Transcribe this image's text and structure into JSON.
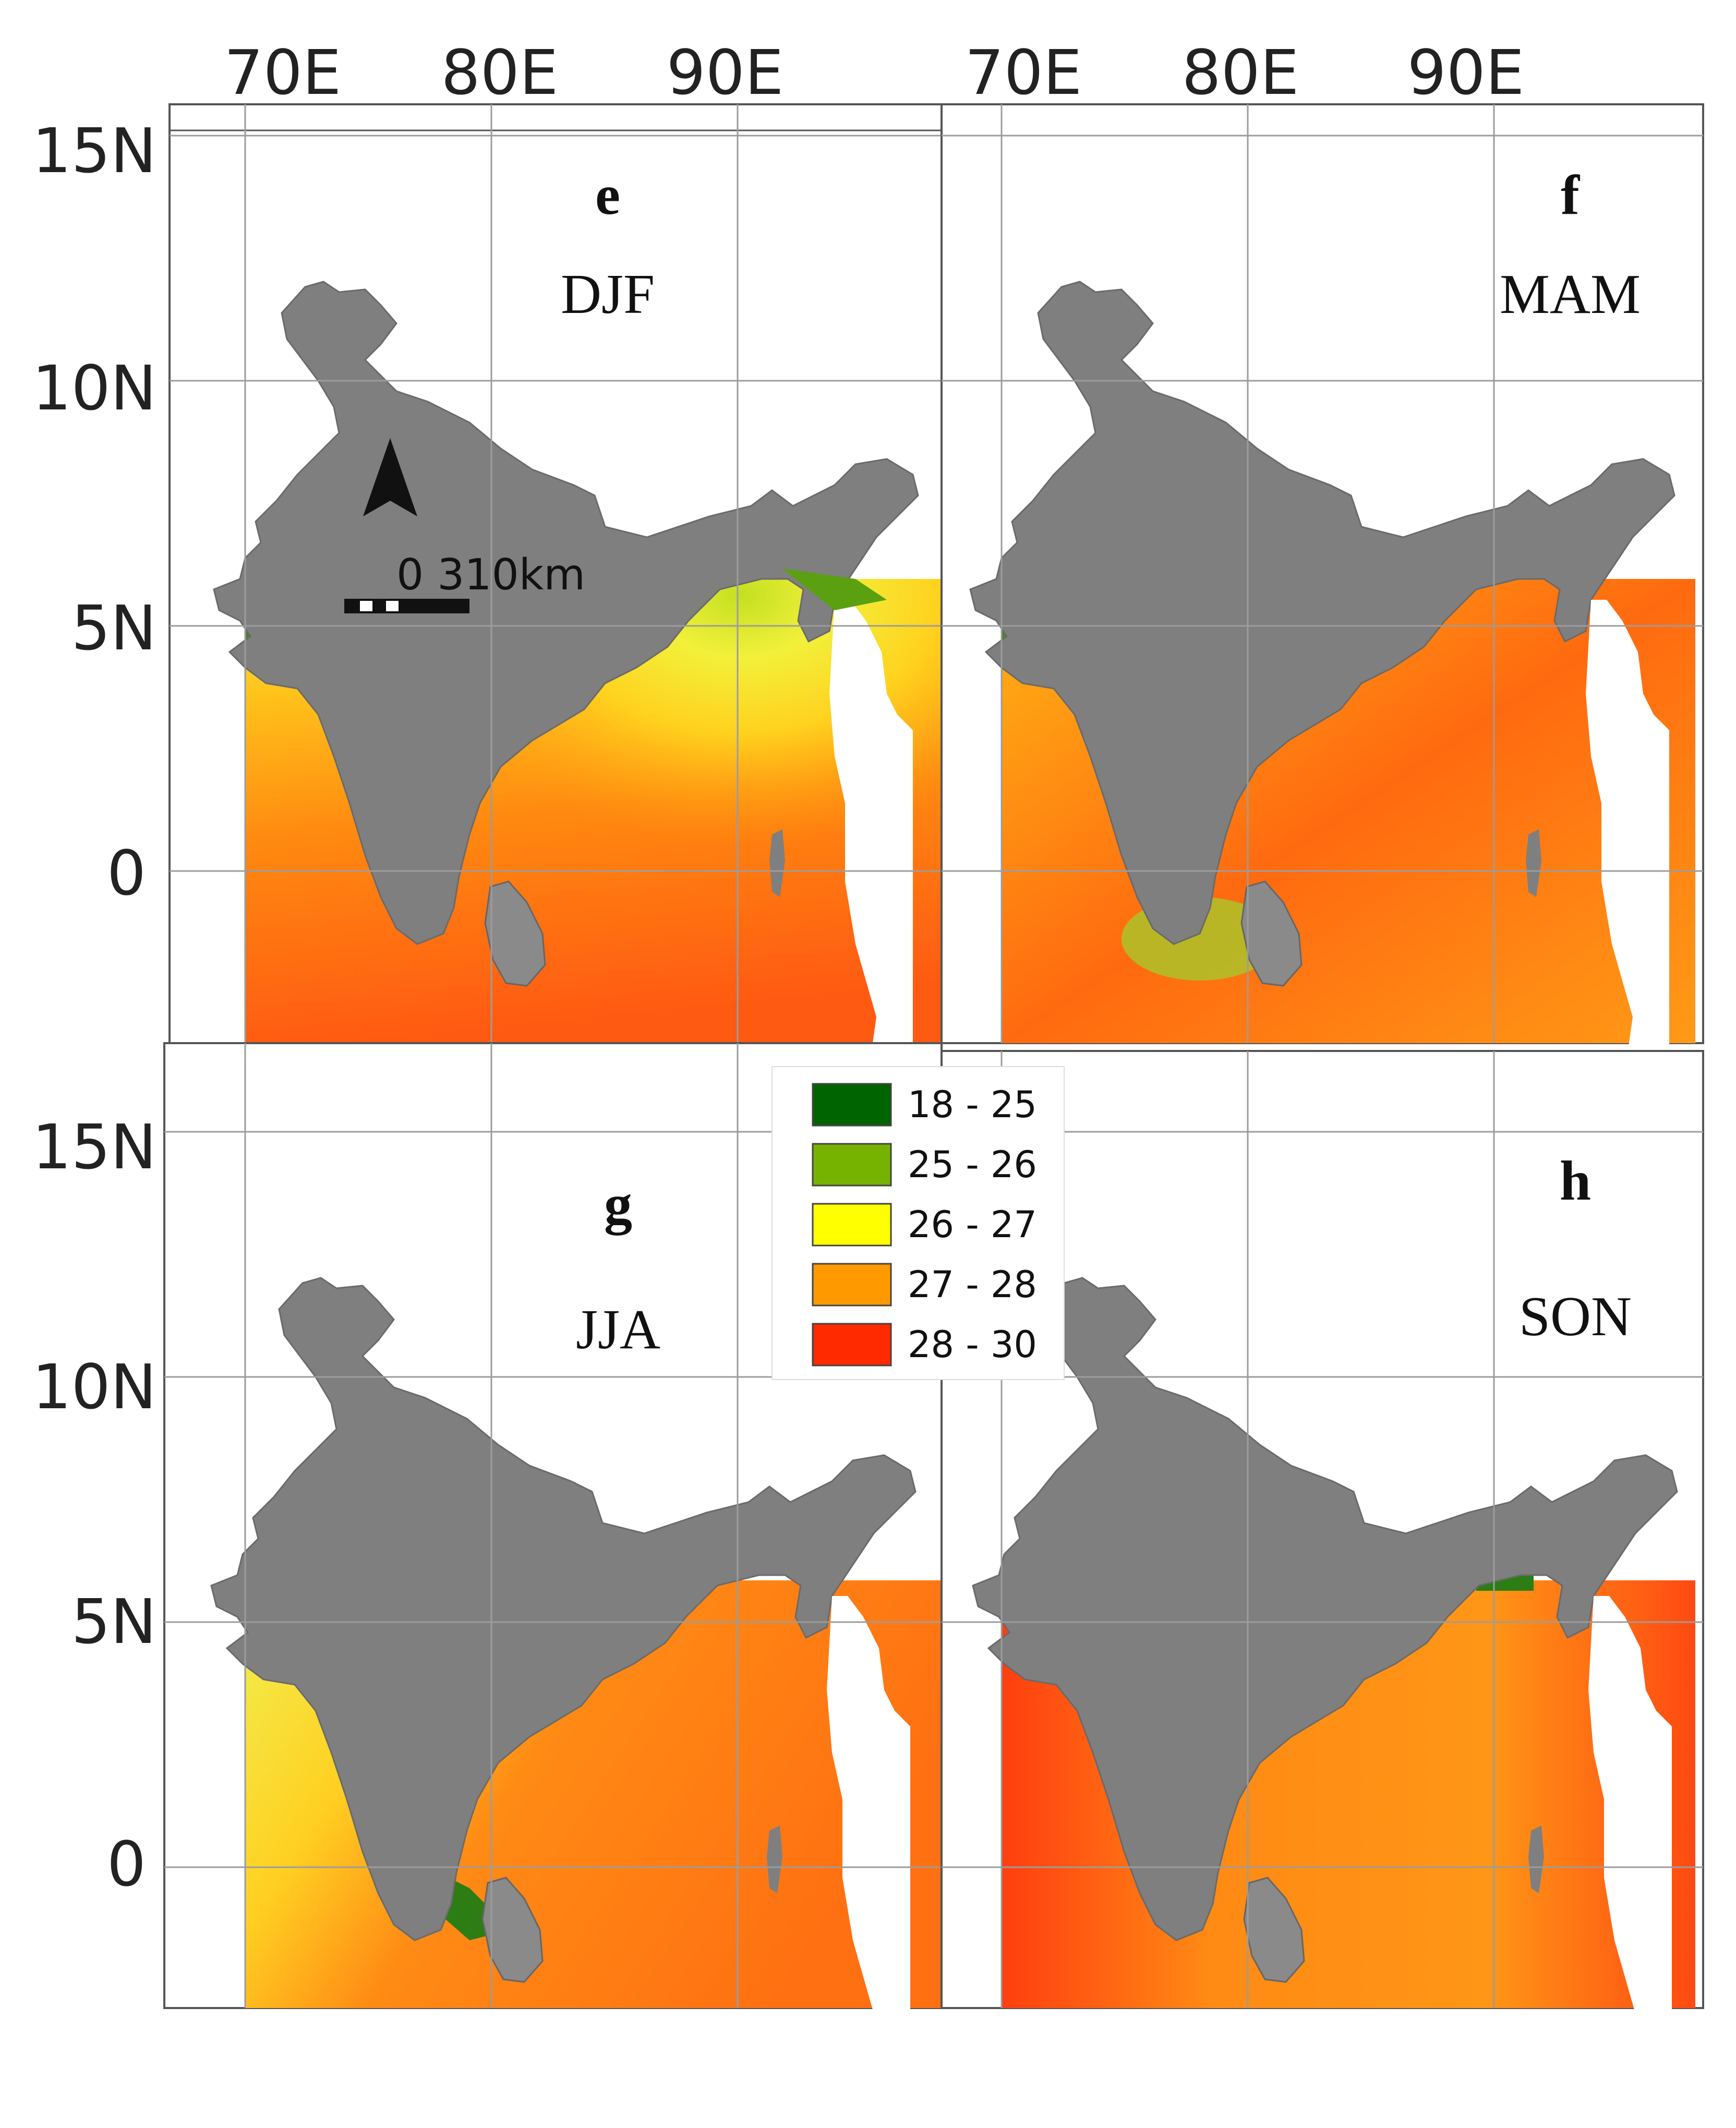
{
  "map": {
    "top_lon_labels_left": [
      "70E",
      "80E",
      "90E"
    ],
    "top_lon_labels_right": [
      "70E",
      "80E",
      "90E"
    ],
    "lat_labels_top": [
      "15N",
      "10N",
      "5N",
      "0"
    ],
    "lat_labels_bottom": [
      "15N",
      "10N",
      "5N",
      "0"
    ],
    "land_color": "#7f7f7f",
    "panels": [
      {
        "letter": "e",
        "season": "DJF",
        "dominant_class": "27 - 28"
      },
      {
        "letter": "f",
        "season": "MAM",
        "dominant_class": "28 - 30"
      },
      {
        "letter": "g",
        "season": "JJA",
        "dominant_class": "27 - 28"
      },
      {
        "letter": "h",
        "season": "SON",
        "dominant_class": "27 - 28"
      }
    ],
    "north_arrow": "north-arrow-icon",
    "scale_bar": {
      "label": "0 310km"
    },
    "legend": {
      "items": [
        {
          "label": "18 - 25",
          "color": "#006400"
        },
        {
          "label": "25 - 26",
          "color": "#76b300"
        },
        {
          "label": "26 - 27",
          "color": "#ffff00"
        },
        {
          "label": "27 - 28",
          "color": "#ff9900"
        },
        {
          "label": "28 - 30",
          "color": "#ff2a00"
        }
      ]
    }
  }
}
